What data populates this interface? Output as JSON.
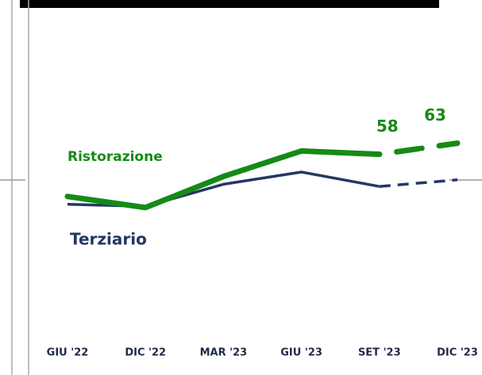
{
  "chart_data": {
    "type": "line",
    "categories": [
      "GIU '22",
      "DIC '22",
      "MAR '23",
      "GIU '23",
      "SET '23",
      "DIC '23"
    ],
    "series": [
      {
        "name": "Ristorazione",
        "color": "#168a16",
        "values": [
          39,
          34,
          48,
          59.5,
          58,
          63
        ],
        "value_labels": [
          null,
          null,
          null,
          null,
          "58",
          "63"
        ],
        "dash_last_segment": true
      },
      {
        "name": "Terziario",
        "color": "#243764",
        "values": [
          35.5,
          34.5,
          44.5,
          50,
          43.5,
          46.5
        ],
        "dash_last_segment": true
      }
    ],
    "ylim": [
      0,
      70
    ],
    "grid": false
  }
}
